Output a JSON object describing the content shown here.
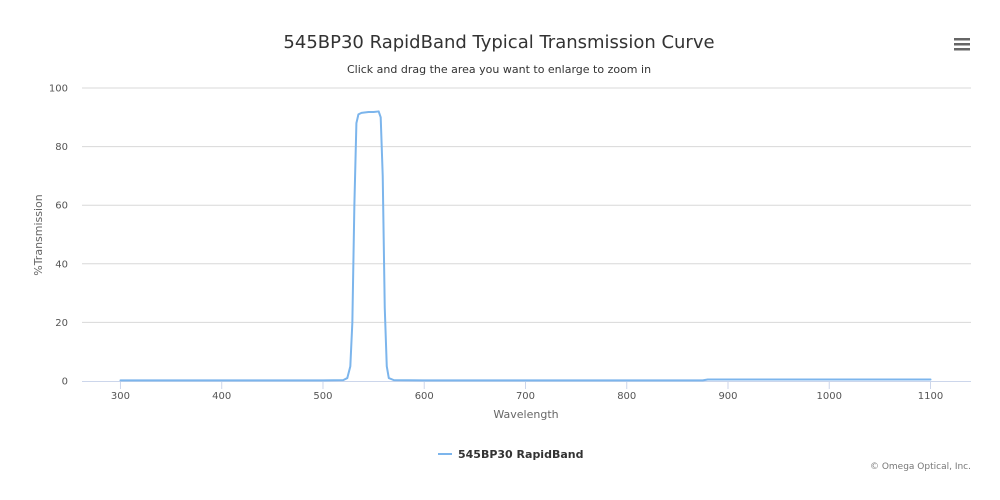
{
  "chart_data": {
    "type": "line",
    "title": "545BP30 RapidBand Typical Transmission Curve",
    "subtitle": "Click and drag the area you want to enlarge to zoom in",
    "xlabel": "Wavelength",
    "ylabel": "%Transmission",
    "xlim": [
      262,
      1140
    ],
    "ylim": [
      0,
      100
    ],
    "x_ticks": [
      300,
      400,
      500,
      600,
      700,
      800,
      900,
      1000,
      1100
    ],
    "y_ticks": [
      0,
      20,
      40,
      60,
      80,
      100
    ],
    "grid": true,
    "legend_position": "bottom-center",
    "series": [
      {
        "name": "545BP30 RapidBand",
        "color": "#7cb5ec",
        "x": [
          300,
          400,
          500,
          520,
          524,
          527,
          529,
          531,
          533,
          535,
          538,
          545,
          550,
          555,
          557,
          559,
          561,
          563,
          565,
          570,
          600,
          700,
          800,
          875,
          880,
          950,
          1000,
          1050,
          1100
        ],
        "y": [
          0.2,
          0.2,
          0.2,
          0.3,
          1,
          5,
          20,
          60,
          88,
          91,
          91.5,
          91.8,
          91.8,
          92,
          90,
          70,
          25,
          5,
          1,
          0.3,
          0.2,
          0.2,
          0.2,
          0.2,
          0.5,
          0.5,
          0.5,
          0.5,
          0.5
        ]
      }
    ]
  },
  "menu_icon": "hamburger-menu-icon",
  "credit": "© Omega Optical, Inc."
}
